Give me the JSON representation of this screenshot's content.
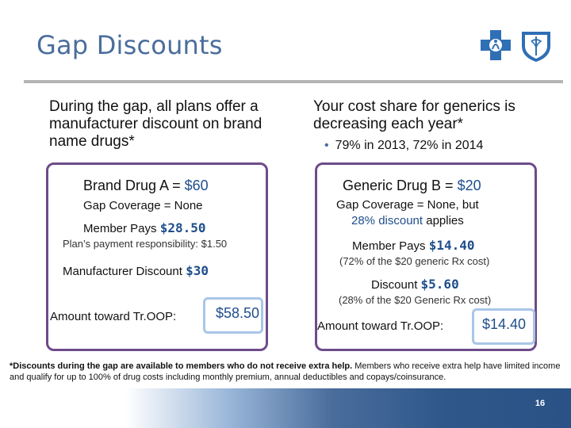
{
  "slide": {
    "title": "Gap Discounts",
    "page_number": "16"
  },
  "intro": {
    "left": "During the gap, all plans offer a manufacturer discount on brand name drugs*",
    "right": "Your cost share for generics is decreasing each year*",
    "right_bullet": "79% in 2013, 72% in 2014"
  },
  "left_panel": {
    "drug_label": "Brand Drug A = ",
    "drug_price": "$60",
    "gap_coverage": "Gap Coverage = None",
    "member_pays_label": "Member Pays ",
    "member_pays_value": "$28.50",
    "plan_payment": "Plan’s payment responsibility: $1.50",
    "manufacturer_label": "Manufacturer Discount ",
    "manufacturer_value": "$30",
    "troop_label": "Amount toward Tr.OOP:",
    "troop_value": "$58.50"
  },
  "right_panel": {
    "drug_label": "Generic Drug B = ",
    "drug_price": "$20",
    "gap_line1": "Gap Coverage = None, but",
    "gap_line2_value": "28% discount",
    "gap_line2_rest": " applies",
    "member_pays_label": "Member Pays ",
    "member_pays_value": "$14.40",
    "member_pays_note": "(72% of the $20 generic Rx cost)",
    "discount_label": "Discount ",
    "discount_value": "$5.60",
    "discount_note": "(28% of the $20 Generic Rx cost)",
    "troop_label": "Amount toward Tr.OOP:",
    "troop_value": "$14.40"
  },
  "footnote": {
    "bold": "*Discounts during the gap are available to members who do not receive extra help.",
    "rest": " Members who receive extra help have limited income and qualify for up to 100% of drug costs including monthly premium, annual deductibles and copays/coinsurance."
  },
  "colors": {
    "title": "#4a6d9c",
    "panel_border": "#6e4b8a",
    "value_blue": "#1f4e8c",
    "highlight_box": "#a9c6e8"
  },
  "icons": [
    "blue-cross-logo-icon",
    "blue-shield-logo-icon"
  ]
}
